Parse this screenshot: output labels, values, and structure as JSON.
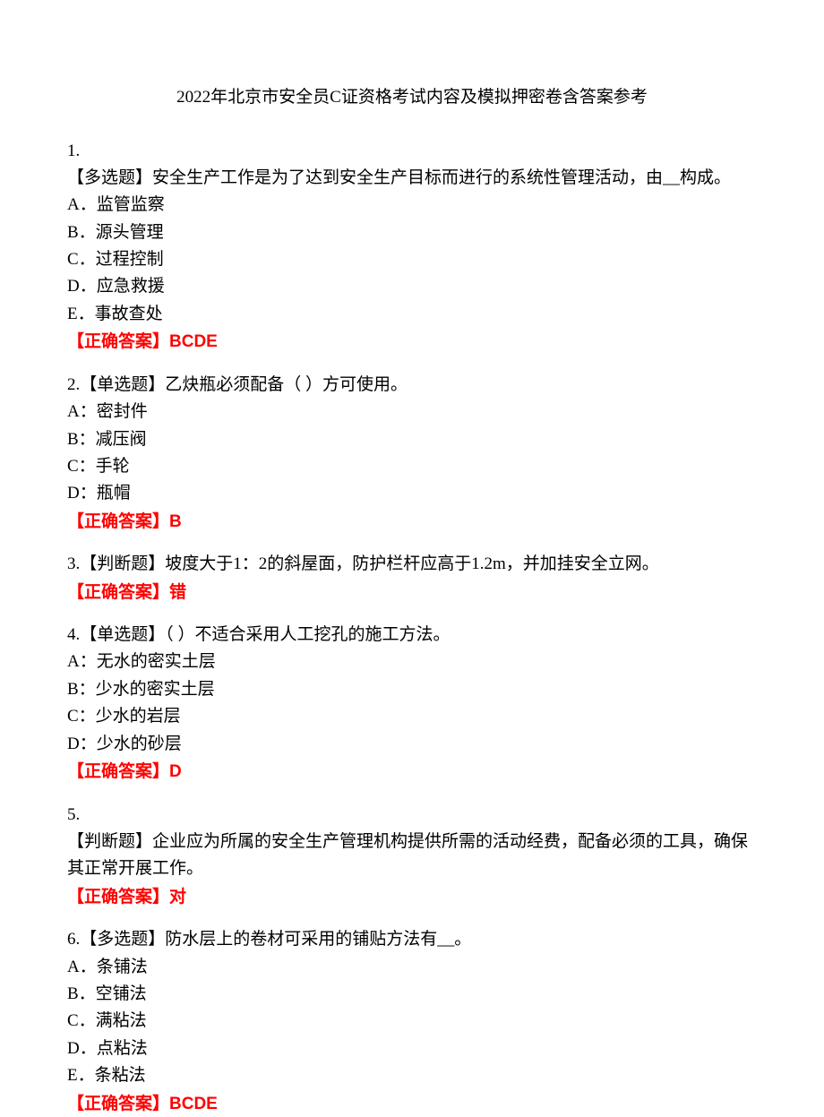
{
  "title": "2022年北京市安全员C证资格考试内容及模拟押密卷含答案参考",
  "questions": [
    {
      "number": "1.",
      "type_prefix": "【多选题】",
      "text": "安全生产工作是为了达到安全生产目标而进行的系统性管理活动，由__构成。",
      "options": [
        "A．监管监察",
        "B．源头管理",
        "C．过程控制",
        "D．应急救援",
        "E．事故查处"
      ],
      "answer_label": "【正确答案】",
      "answer": "BCDE"
    },
    {
      "number": "2.",
      "type_prefix": "【单选题】",
      "text": "乙炔瓶必须配备（ ）方可使用。",
      "options": [
        "A：密封件",
        "B：减压阀",
        "C：手轮",
        "D：瓶帽"
      ],
      "answer_label": "【正确答案】",
      "answer": "B"
    },
    {
      "number": "3.",
      "type_prefix": "【判断题】",
      "text": "坡度大于1：2的斜屋面，防护栏杆应高于1.2m，并加挂安全立网。",
      "options": [],
      "answer_label": "【正确答案】",
      "answer": "错"
    },
    {
      "number": "4.",
      "type_prefix": "【单选题】",
      "text": "（ ）不适合采用人工挖孔的施工方法。",
      "options": [
        "A：无水的密实土层",
        "B：少水的密实土层",
        "C：少水的岩层",
        "D：少水的砂层"
      ],
      "answer_label": "【正确答案】",
      "answer": "D"
    },
    {
      "number": "5.",
      "type_prefix": "【判断题】",
      "text": "企业应为所属的安全生产管理机构提供所需的活动经费，配备必须的工具，确保其正常开展工作。",
      "options": [],
      "answer_label": "【正确答案】",
      "answer": "对"
    },
    {
      "number": "6.",
      "type_prefix": "【多选题】",
      "text": "防水层上的卷材可采用的铺贴方法有__。",
      "options": [
        "A．条铺法",
        "B．空铺法",
        "C．满粘法",
        "D．点粘法",
        "E．条粘法"
      ],
      "answer_label": "【正确答案】",
      "answer": "BCDE"
    }
  ]
}
